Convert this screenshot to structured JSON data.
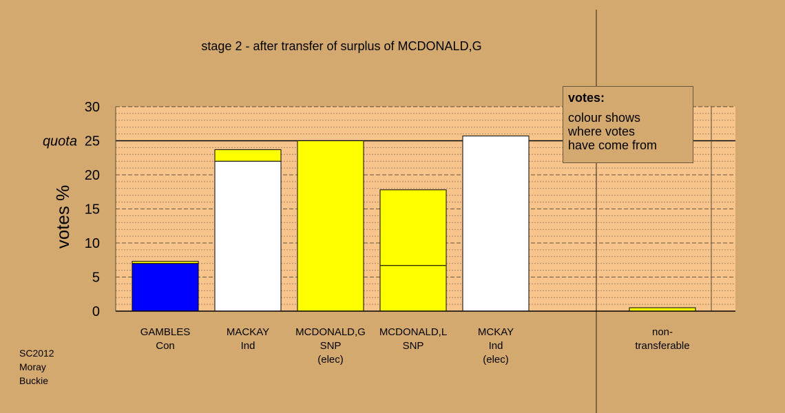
{
  "chart_data": {
    "type": "bar",
    "stacked": true,
    "title": "stage 2 - after transfer of surplus of MCDONALD,G",
    "ylabel": "votes %",
    "ylim": [
      0,
      30
    ],
    "yticks": [
      "0",
      "5",
      "10",
      "15",
      "20",
      "25",
      "30"
    ],
    "quota": {
      "label": "quota",
      "value": 25
    },
    "grid": true,
    "bars": [
      {
        "label_lines": [
          "GAMBLES",
          "Con"
        ],
        "segments": [
          {
            "value": 7.0,
            "color": "#0000FF"
          },
          {
            "value": 0.3,
            "color": "#FFFF00"
          }
        ]
      },
      {
        "label_lines": [
          "MACKAY",
          "Ind"
        ],
        "segments": [
          {
            "value": 22.0,
            "color": "#FFFFFF"
          },
          {
            "value": 1.7,
            "color": "#FFFF00"
          }
        ]
      },
      {
        "label_lines": [
          "MCDONALD,G",
          "SNP",
          "(elec)"
        ],
        "segments": [
          {
            "value": 25.0,
            "color": "#FFFF00"
          }
        ]
      },
      {
        "label_lines": [
          "MCDONALD,L",
          "SNP"
        ],
        "segments": [
          {
            "value": 6.7,
            "color": "#FFFF00"
          },
          {
            "value": 11.1,
            "color": "#FFFF00"
          }
        ]
      },
      {
        "label_lines": [
          "MCKAY",
          "Ind",
          "(elec)"
        ],
        "segments": [
          {
            "value": 25.7,
            "color": "#FFFFFF"
          }
        ]
      }
    ],
    "nontransferable": {
      "label_lines": [
        "non-",
        "transferable"
      ],
      "value": 0.5,
      "color": "#FFFF00"
    }
  },
  "legend": {
    "title": "votes:",
    "lines": [
      "colour shows",
      "where votes",
      "have come from"
    ]
  },
  "footer": [
    "SC2012",
    "Moray",
    "Buckie"
  ],
  "colors": {
    "background": "#D4A96F",
    "plot_band": "#F7C48C"
  }
}
